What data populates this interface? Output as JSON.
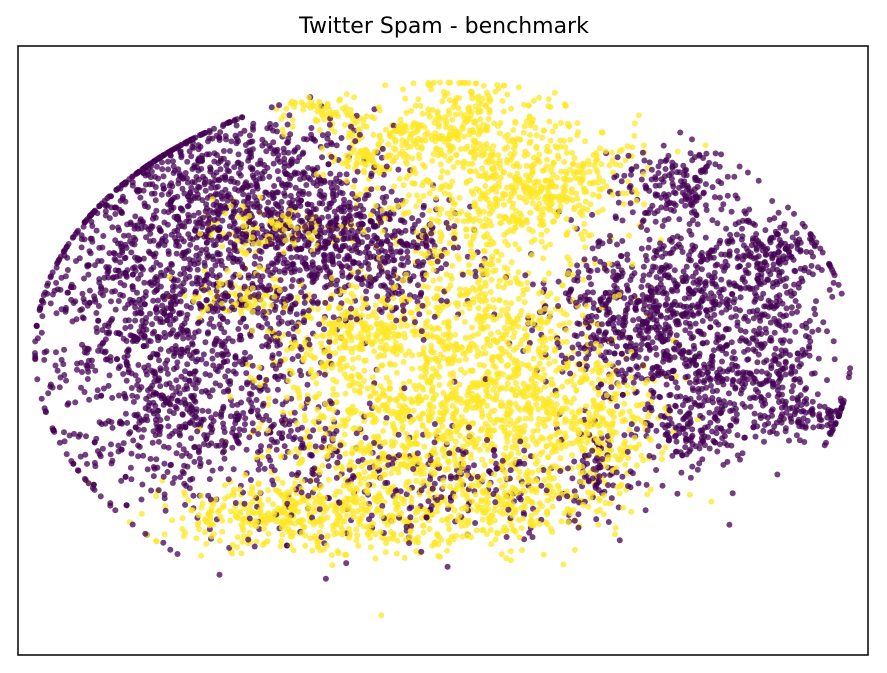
{
  "chart_data": {
    "type": "scatter",
    "title": "Twitter Spam - benchmark",
    "xlabel": "",
    "ylabel": "",
    "xticks": [],
    "yticks": [],
    "grid": false,
    "legend": "none",
    "xlim": [
      -100,
      100
    ],
    "ylim": [
      -100,
      100
    ],
    "marker_opacity": 0.75,
    "series": [
      {
        "color": "#440154",
        "clusters": [
          {
            "x": -72,
            "y": 12,
            "sx": 13,
            "sy": 30,
            "n": 900
          },
          {
            "x": -56,
            "y": 48,
            "sx": 11,
            "sy": 12,
            "n": 380
          },
          {
            "x": -44,
            "y": 17,
            "sx": 10,
            "sy": 16,
            "n": 300
          },
          {
            "x": -30,
            "y": 46,
            "sx": 9,
            "sy": 14,
            "n": 280
          },
          {
            "x": -25,
            "y": 32,
            "sx": 12,
            "sy": 10,
            "n": 300
          },
          {
            "x": -10,
            "y": 30,
            "sx": 8,
            "sy": 10,
            "n": 170
          },
          {
            "x": -60,
            "y": -15,
            "sx": 9,
            "sy": 15,
            "n": 240
          },
          {
            "x": -47,
            "y": 67,
            "sx": 14,
            "sy": 7,
            "n": 130
          },
          {
            "x": -40,
            "y": -25,
            "sx": 8,
            "sy": 8,
            "n": 100
          },
          {
            "x": 44,
            "y": 13,
            "sx": 11,
            "sy": 13,
            "n": 400
          },
          {
            "x": 57,
            "y": -2,
            "sx": 12,
            "sy": 16,
            "n": 380
          },
          {
            "x": 68,
            "y": 25,
            "sx": 13,
            "sy": 9,
            "n": 280
          },
          {
            "x": 73,
            "y": -14,
            "sx": 10,
            "sy": 8,
            "n": 160
          },
          {
            "x": 55,
            "y": 53,
            "sx": 8,
            "sy": 7,
            "n": 180
          },
          {
            "x": 80,
            "y": 5,
            "sx": 5,
            "sy": 10,
            "n": 110
          },
          {
            "x": 86,
            "y": -22,
            "sx": 7,
            "sy": 4,
            "n": 90
          },
          {
            "x": 79,
            "y": 34,
            "sx": 6,
            "sy": 5,
            "n": 90
          },
          {
            "x": 60,
            "y": -27,
            "sx": 6,
            "sy": 5,
            "n": 80
          },
          {
            "x": 36,
            "y": -39,
            "sx": 3,
            "sy": 8,
            "n": 60
          },
          {
            "x": -25,
            "y": -40,
            "sx": 20,
            "sy": 12,
            "n": 160
          },
          {
            "x": 10,
            "y": -45,
            "sx": 20,
            "sy": 9,
            "n": 160
          }
        ]
      },
      {
        "color": "#fde725",
        "clusters": [
          {
            "x": 10,
            "y": 55,
            "sx": 15,
            "sy": 14,
            "n": 600
          },
          {
            "x": 4,
            "y": 75,
            "sx": 6,
            "sy": 8,
            "n": 140
          },
          {
            "x": 28,
            "y": 56,
            "sx": 8,
            "sy": 8,
            "n": 180
          },
          {
            "x": 8,
            "y": 10,
            "sx": 14,
            "sy": 12,
            "n": 420
          },
          {
            "x": -22,
            "y": 5,
            "sx": 9,
            "sy": 8,
            "n": 240
          },
          {
            "x": -5,
            "y": -25,
            "sx": 18,
            "sy": 14,
            "n": 800
          },
          {
            "x": 25,
            "y": -20,
            "sx": 12,
            "sy": 13,
            "n": 420
          },
          {
            "x": -40,
            "y": -55,
            "sx": 13,
            "sy": 5,
            "n": 300
          },
          {
            "x": -10,
            "y": -55,
            "sx": 18,
            "sy": 6,
            "n": 260
          },
          {
            "x": 18,
            "y": -50,
            "sx": 10,
            "sy": 6,
            "n": 150
          },
          {
            "x": -40,
            "y": 40,
            "sx": 10,
            "sy": 4,
            "n": 110
          },
          {
            "x": -48,
            "y": 18,
            "sx": 7,
            "sy": 4,
            "n": 90
          },
          {
            "x": -30,
            "y": 78,
            "sx": 6,
            "sy": 3,
            "n": 70
          },
          {
            "x": -12,
            "y": 70,
            "sx": 7,
            "sy": 3,
            "n": 60
          },
          {
            "x": -18,
            "y": 63,
            "sx": 5,
            "sy": 3,
            "n": 50
          },
          {
            "x": 40,
            "y": -30,
            "sx": 5,
            "sy": 10,
            "n": 100
          }
        ]
      }
    ]
  }
}
